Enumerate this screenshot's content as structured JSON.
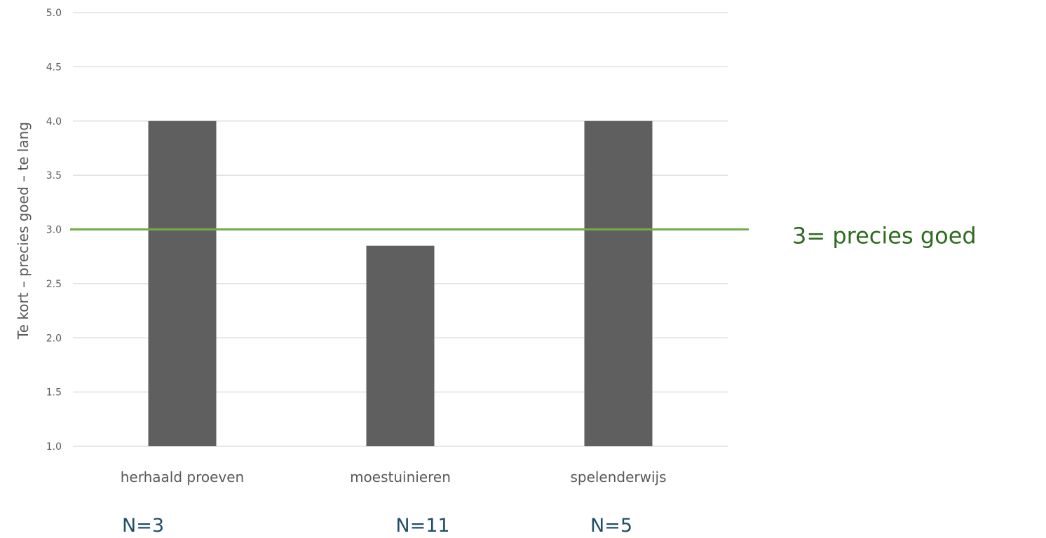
{
  "chart_data": {
    "type": "bar",
    "title": "",
    "xlabel": "",
    "ylabel": "Te kort – precies goed – te lang",
    "ylim": [
      1.0,
      5.0
    ],
    "yticks": [
      "1.0",
      "1.5",
      "2.0",
      "2.5",
      "3.0",
      "3.5",
      "4.0",
      "4.5",
      "5.0"
    ],
    "ytick_values": [
      1.0,
      1.5,
      2.0,
      2.5,
      3.0,
      3.5,
      4.0,
      4.5,
      5.0
    ],
    "grid": true,
    "legend": "none",
    "categories": [
      "herhaald proeven",
      "moestuinieren",
      "spelenderwijs"
    ],
    "values": [
      4.0,
      2.85,
      4.0
    ],
    "sample_sizes": [
      "N=3",
      "N=11",
      "N=5"
    ],
    "bar_color": "#5f5f5f",
    "reference_line": {
      "value": 3.0,
      "label": "3= precies goed",
      "color": "#70ad47",
      "label_color": "#2e6b1f"
    }
  }
}
